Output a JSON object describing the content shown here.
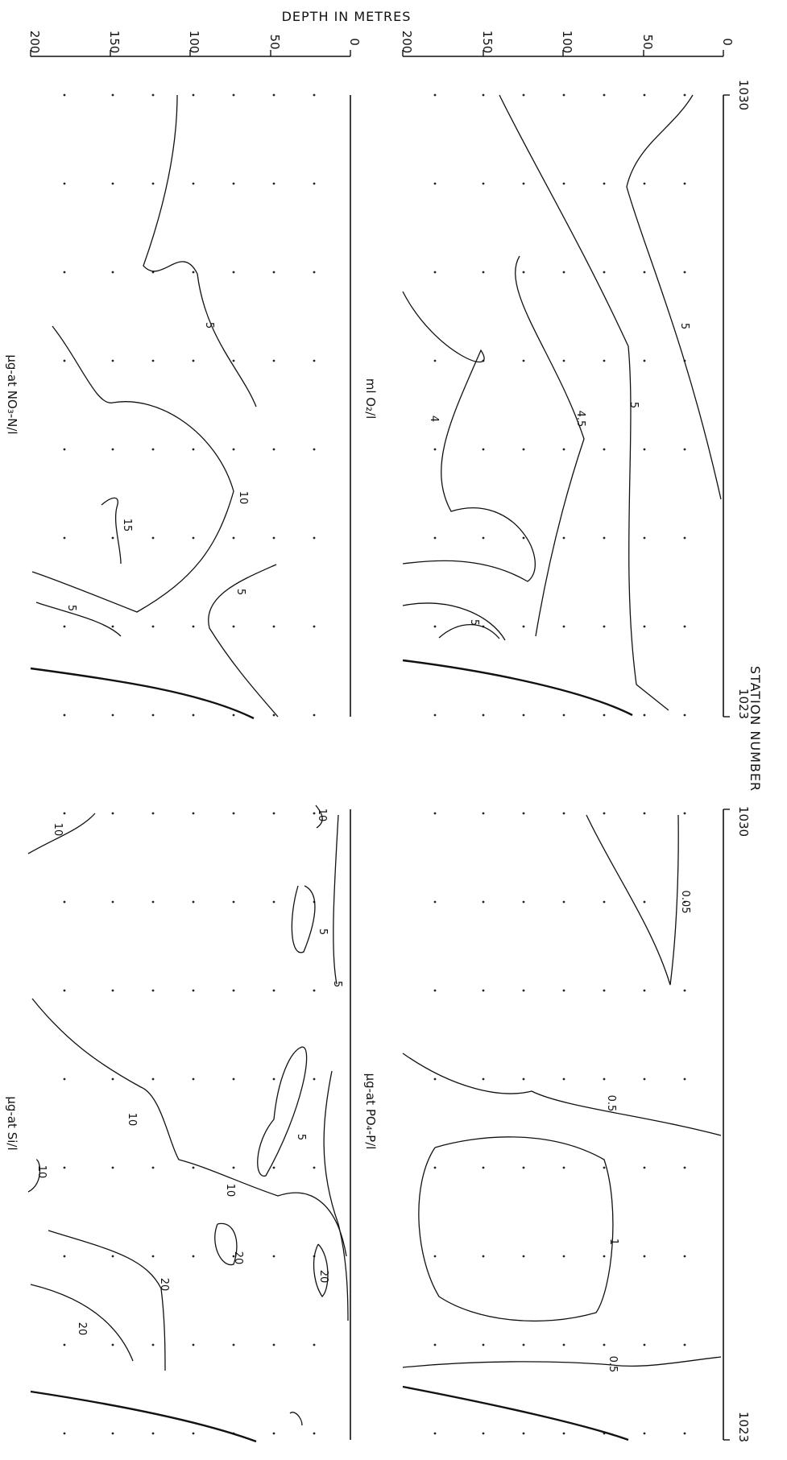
{
  "figure": {
    "depth_axis_title": "DEPTH IN METRES",
    "station_axis_title": "STATION NUMBER",
    "depth_ticks": [
      "0",
      "50",
      "100",
      "150",
      "200"
    ],
    "station_start": "1030",
    "station_end": "1023"
  },
  "panels": {
    "oxygen": {
      "label": "ml O₂/l",
      "contour_labels": [
        "5",
        "5",
        "4.5",
        "4",
        "5"
      ]
    },
    "nitrate": {
      "label": "µg-at NO₃-N/l",
      "contour_labels": [
        "5",
        "10",
        "15",
        "5",
        "5"
      ]
    },
    "phosphate": {
      "label": "µg-at PO₄-P/l",
      "contour_labels": [
        "0.05",
        "0.5",
        "1",
        "0.5"
      ]
    },
    "silicate": {
      "label": "µg-at Si/l",
      "contour_labels": [
        "10",
        "5",
        "5",
        "5",
        "10",
        "10",
        "10",
        "20",
        "20",
        "20",
        "20",
        "10"
      ]
    }
  }
}
